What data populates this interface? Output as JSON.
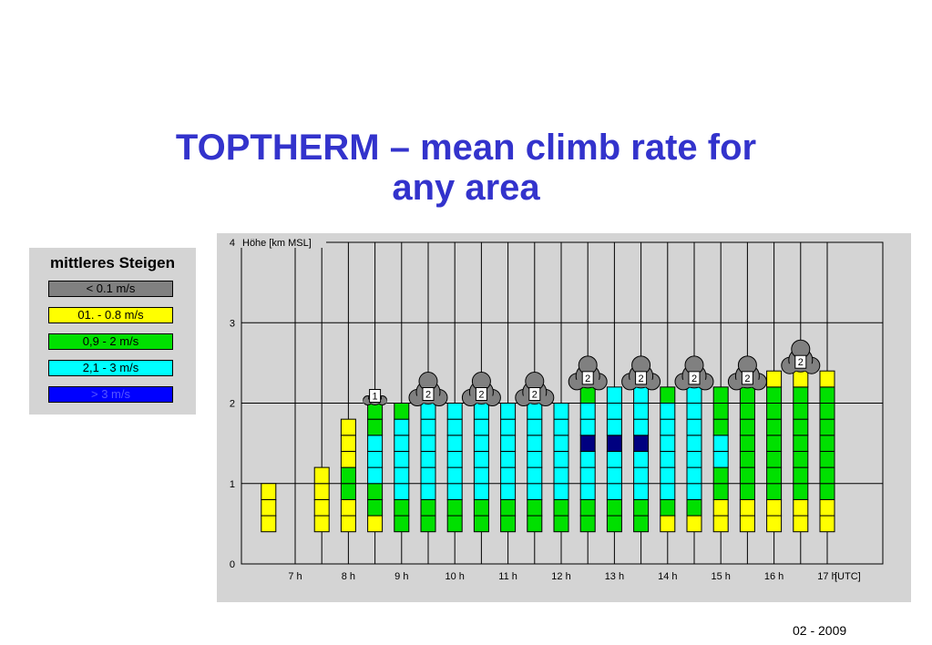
{
  "title": {
    "line1": "TOPTHERM – mean climb rate for",
    "line2": "any area"
  },
  "legend": {
    "title": "mittleres Steigen",
    "items": [
      {
        "label": "< 0.1 m/s",
        "color": "#808080"
      },
      {
        "label": "01. - 0.8 m/s",
        "color": "#ffff00"
      },
      {
        "label": "0,9 - 2 m/s",
        "color": "#00e000"
      },
      {
        "label": "2,1 - 3 m/s",
        "color": "#00ffff"
      },
      {
        "label": "> 3 m/s",
        "color": "#0000ff"
      }
    ]
  },
  "footer": {
    "date": "02 - 2009"
  },
  "chart_data": {
    "type": "bar",
    "ylabel": "Höhe [km MSL]",
    "ylim": [
      0,
      4
    ],
    "yticks": [
      "0",
      "1",
      "2",
      "3",
      "4"
    ],
    "x_tick_labels": [
      "7 h",
      "8 h",
      "9 h",
      "10 h",
      "11 h",
      "12 h",
      "13 h",
      "14 h",
      "15 h",
      "16 h",
      "17 h",
      "[UTC]"
    ],
    "grid": true,
    "level_step_km": 0.2,
    "class_colors": {
      "Y": "#ffff00",
      "G": "#00e000",
      "C": "#00ffff",
      "D": "#000080"
    },
    "columns": [
      {
        "time": "6:30",
        "base": 0.4,
        "layers": [
          "Y",
          "Y",
          "Y"
        ]
      },
      {
        "time": "7:30",
        "base": 0.4,
        "layers": [
          "Y",
          "Y",
          "Y",
          "Y"
        ]
      },
      {
        "time": "8:00",
        "base": 0.4,
        "layers": [
          "Y",
          "Y",
          "G",
          "G",
          "Y",
          "Y",
          "Y"
        ]
      },
      {
        "time": "8:30",
        "base": 0.4,
        "layers": [
          "Y",
          "G",
          "G",
          "C",
          "C",
          "C",
          "G",
          "G"
        ],
        "cloud": 1
      },
      {
        "time": "9:00",
        "base": 0.4,
        "layers": [
          "G",
          "G",
          "C",
          "C",
          "C",
          "C",
          "C",
          "G"
        ]
      },
      {
        "time": "9:30",
        "base": 0.4,
        "layers": [
          "G",
          "G",
          "C",
          "C",
          "C",
          "C",
          "C",
          "C"
        ],
        "cloud": 2
      },
      {
        "time": "10:00",
        "base": 0.4,
        "layers": [
          "G",
          "G",
          "C",
          "C",
          "C",
          "C",
          "C",
          "C"
        ]
      },
      {
        "time": "10:30",
        "base": 0.4,
        "layers": [
          "G",
          "G",
          "C",
          "C",
          "C",
          "C",
          "C",
          "C"
        ],
        "cloud": 2
      },
      {
        "time": "11:00",
        "base": 0.4,
        "layers": [
          "G",
          "G",
          "C",
          "C",
          "C",
          "C",
          "C",
          "C"
        ]
      },
      {
        "time": "11:30",
        "base": 0.4,
        "layers": [
          "G",
          "G",
          "C",
          "C",
          "C",
          "C",
          "C",
          "C"
        ],
        "cloud": 2
      },
      {
        "time": "12:00",
        "base": 0.4,
        "layers": [
          "G",
          "G",
          "C",
          "C",
          "C",
          "C",
          "C",
          "C"
        ]
      },
      {
        "time": "12:30",
        "base": 0.4,
        "layers": [
          "G",
          "G",
          "C",
          "C",
          "C",
          "D",
          "C",
          "C",
          "G"
        ],
        "cloud": 2
      },
      {
        "time": "13:00",
        "base": 0.4,
        "layers": [
          "G",
          "G",
          "C",
          "C",
          "C",
          "D",
          "C",
          "C",
          "C"
        ]
      },
      {
        "time": "13:30",
        "base": 0.4,
        "layers": [
          "G",
          "G",
          "C",
          "C",
          "C",
          "D",
          "C",
          "C",
          "C"
        ],
        "cloud": 2
      },
      {
        "time": "14:00",
        "base": 0.4,
        "layers": [
          "Y",
          "G",
          "C",
          "C",
          "C",
          "C",
          "C",
          "C",
          "G"
        ]
      },
      {
        "time": "14:30",
        "base": 0.4,
        "layers": [
          "Y",
          "G",
          "C",
          "C",
          "C",
          "C",
          "C",
          "C",
          "C"
        ],
        "cloud": 2
      },
      {
        "time": "15:00",
        "base": 0.4,
        "layers": [
          "Y",
          "Y",
          "G",
          "G",
          "C",
          "C",
          "G",
          "G",
          "G"
        ]
      },
      {
        "time": "15:30",
        "base": 0.4,
        "layers": [
          "Y",
          "Y",
          "G",
          "G",
          "G",
          "G",
          "G",
          "G",
          "G"
        ],
        "cloud": 2
      },
      {
        "time": "16:00",
        "base": 0.4,
        "layers": [
          "Y",
          "Y",
          "G",
          "G",
          "G",
          "G",
          "G",
          "G",
          "G",
          "Y"
        ]
      },
      {
        "time": "16:30",
        "base": 0.4,
        "layers": [
          "Y",
          "Y",
          "G",
          "G",
          "G",
          "G",
          "G",
          "G",
          "G",
          "Y"
        ],
        "cloud": 2
      },
      {
        "time": "17:00",
        "base": 0.4,
        "layers": [
          "Y",
          "Y",
          "G",
          "G",
          "G",
          "G",
          "G",
          "G",
          "G",
          "Y"
        ]
      }
    ]
  }
}
